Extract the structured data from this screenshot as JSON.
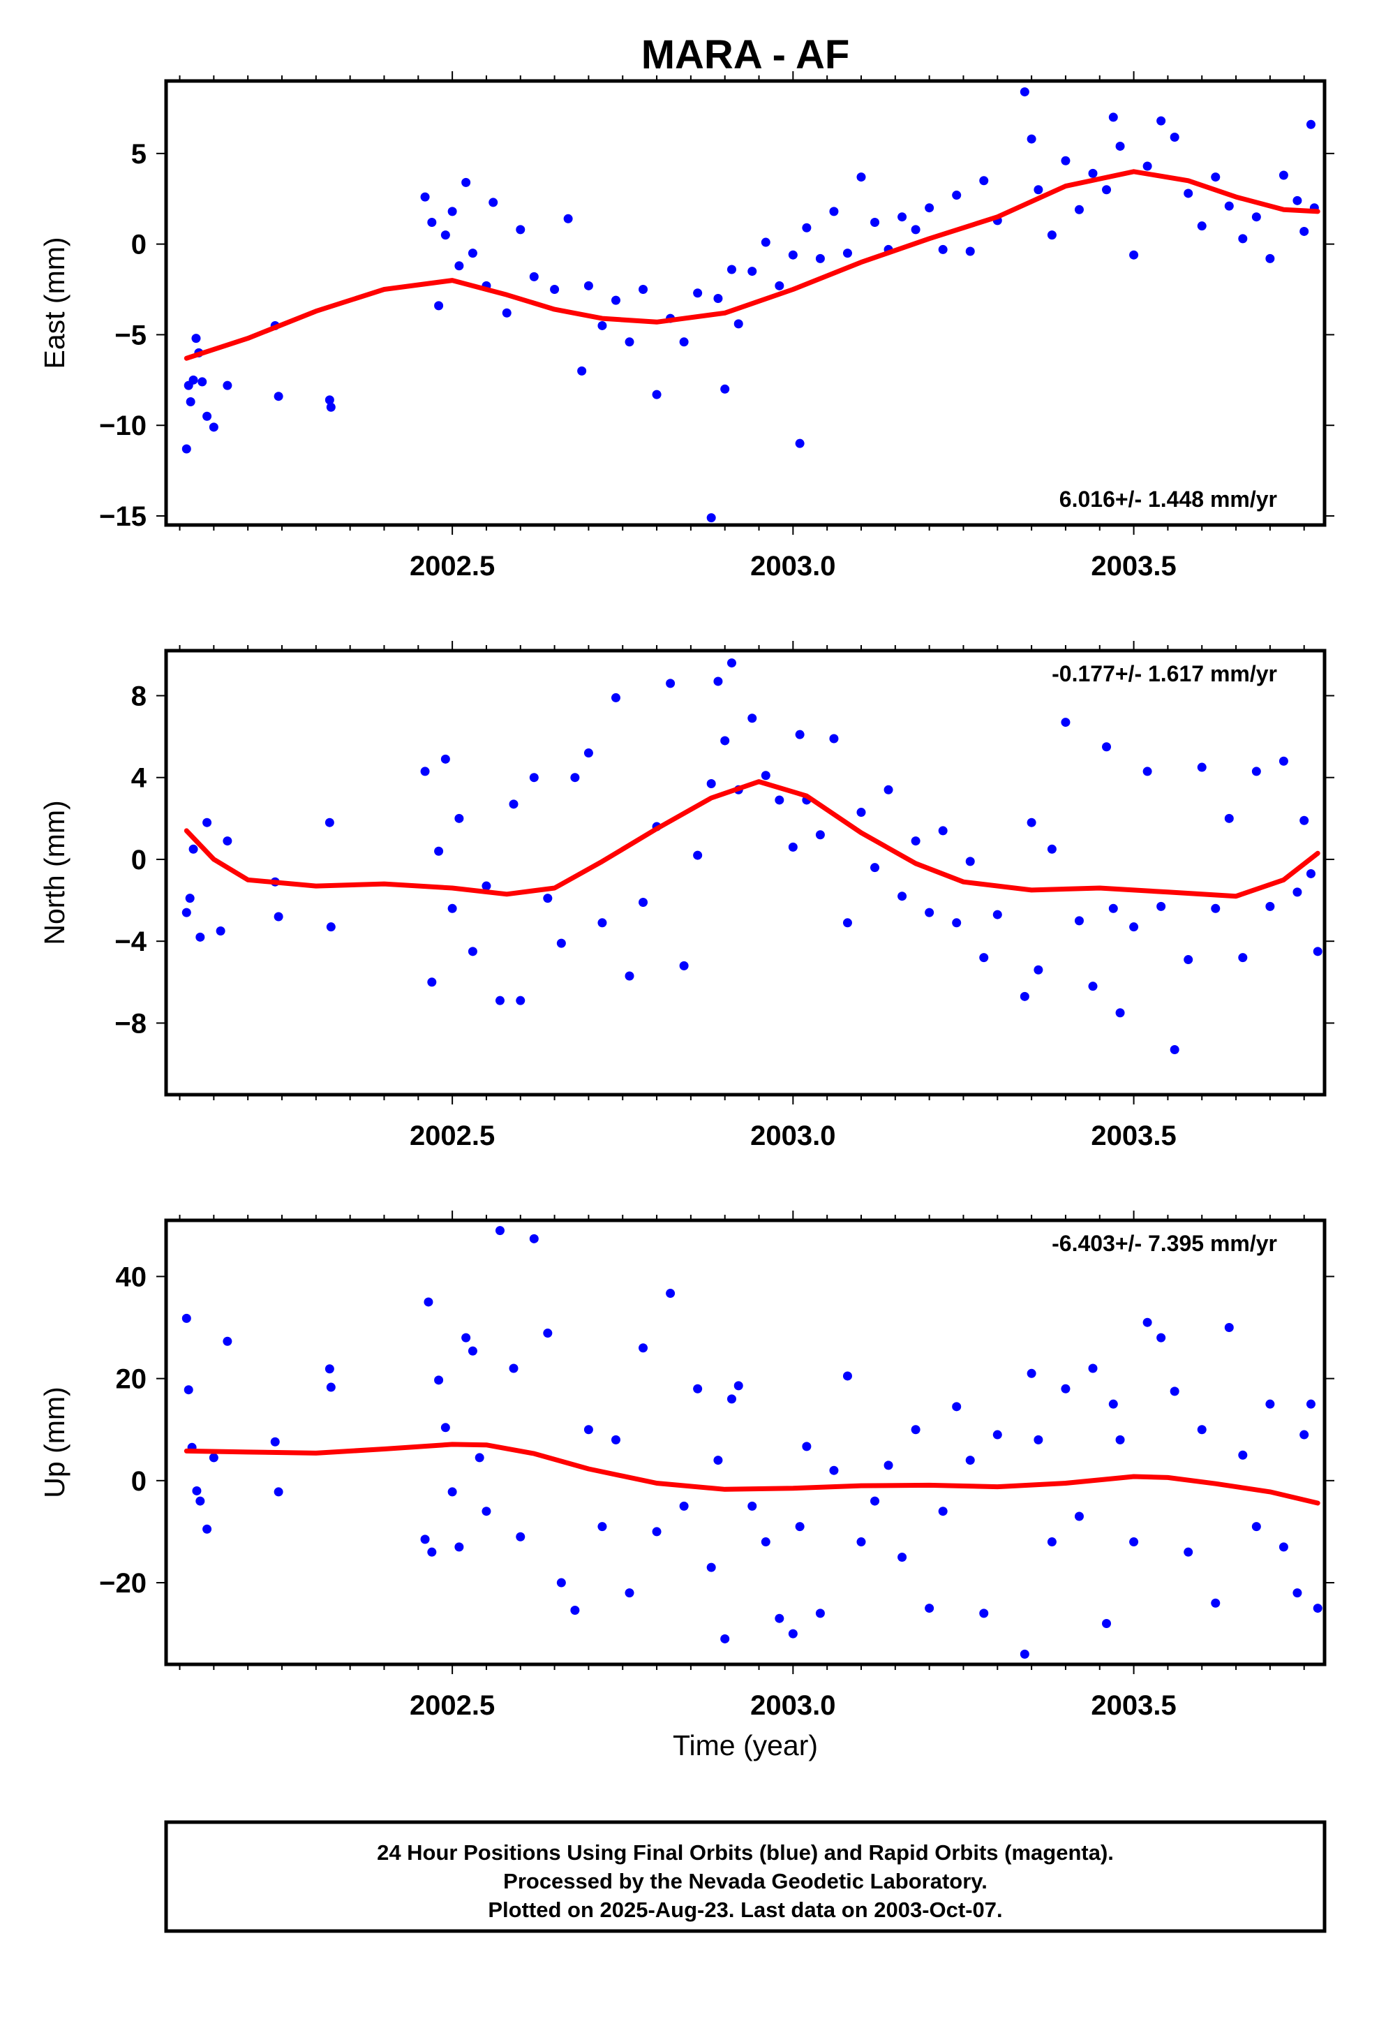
{
  "title": "MARA - AF",
  "colors": {
    "final_orbit_points": "#0000ff",
    "fit_line": "#ff0000",
    "frame": "#000000"
  },
  "chart_data": [
    {
      "type": "scatter",
      "panel": "east",
      "ylabel": "East (mm)",
      "xlabel": "",
      "rate_label": "6.016+/- 1.448 mm/yr",
      "rate_position": "bottom-right",
      "x_ticks": [
        {
          "v": 2002.5,
          "label": "2002.5"
        },
        {
          "v": 2003.0,
          "label": "2003.0"
        },
        {
          "v": 2003.5,
          "label": "2003.5"
        }
      ],
      "y_ticks": [
        {
          "v": 5,
          "label": "5"
        },
        {
          "v": 0,
          "label": "0"
        },
        {
          "v": -5,
          "label": "−5"
        },
        {
          "v": -10,
          "label": "−10"
        },
        {
          "v": -15,
          "label": "−15"
        }
      ],
      "xlim": [
        2002.08,
        2003.78
      ],
      "ylim": [
        -15.5,
        9.0
      ],
      "grid": false,
      "series": [
        {
          "name": "24 Hour Positions (Final Orbits)",
          "style": "points",
          "x": [
            2002.11,
            2002.113,
            2002.116,
            2002.12,
            2002.124,
            2002.128,
            2002.133,
            2002.14,
            2002.15,
            2002.17,
            2002.24,
            2002.245,
            2002.32,
            2002.322,
            2002.46,
            2002.47,
            2002.48,
            2002.49,
            2002.5,
            2002.51,
            2002.52,
            2002.53,
            2002.55,
            2002.56,
            2002.58,
            2002.6,
            2002.62,
            2002.65,
            2002.67,
            2002.69,
            2002.7,
            2002.72,
            2002.74,
            2002.76,
            2002.78,
            2002.8,
            2002.82,
            2002.84,
            2002.86,
            2002.88,
            2002.89,
            2002.9,
            2002.91,
            2002.92,
            2002.94,
            2002.96,
            2002.98,
            2003.0,
            2003.01,
            2003.02,
            2003.04,
            2003.06,
            2003.08,
            2003.1,
            2003.12,
            2003.14,
            2003.16,
            2003.18,
            2003.2,
            2003.22,
            2003.24,
            2003.26,
            2003.28,
            2003.3,
            2003.34,
            2003.35,
            2003.36,
            2003.38,
            2003.4,
            2003.42,
            2003.44,
            2003.46,
            2003.47,
            2003.48,
            2003.5,
            2003.52,
            2003.54,
            2003.56,
            2003.58,
            2003.6,
            2003.62,
            2003.64,
            2003.66,
            2003.68,
            2003.7,
            2003.72,
            2003.74,
            2003.75,
            2003.76,
            2003.765
          ],
          "y": [
            -11.3,
            -7.8,
            -8.7,
            -7.5,
            -5.2,
            -6.0,
            -7.6,
            -9.5,
            -10.1,
            -7.8,
            -4.5,
            -8.4,
            -8.6,
            -9.0,
            2.6,
            1.2,
            -3.4,
            0.5,
            1.8,
            -1.2,
            3.4,
            -0.5,
            -2.3,
            2.3,
            -3.8,
            0.8,
            -1.8,
            -2.5,
            1.4,
            -7.0,
            -2.3,
            -4.5,
            -3.1,
            -5.4,
            -2.5,
            -8.3,
            -4.1,
            -5.4,
            -2.7,
            -15.1,
            -3.0,
            -8.0,
            -1.4,
            -4.4,
            -1.5,
            0.1,
            -2.3,
            -0.6,
            -11.0,
            0.9,
            -0.8,
            1.8,
            -0.5,
            3.7,
            1.2,
            -0.3,
            1.5,
            0.8,
            2.0,
            -0.3,
            2.7,
            -0.4,
            3.5,
            1.3,
            8.4,
            5.8,
            3.0,
            0.5,
            4.6,
            1.9,
            3.9,
            3.0,
            7.0,
            5.4,
            -0.6,
            4.3,
            6.8,
            5.9,
            2.8,
            1.0,
            3.7,
            2.1,
            0.3,
            1.5,
            -0.8,
            3.8,
            2.4,
            0.7,
            6.6,
            2.0
          ]
        },
        {
          "name": "Fit",
          "style": "line",
          "x": [
            2002.11,
            2002.2,
            2002.3,
            2002.4,
            2002.5,
            2002.58,
            2002.65,
            2002.72,
            2002.8,
            2002.9,
            2003.0,
            2003.1,
            2003.2,
            2003.3,
            2003.4,
            2003.5,
            2003.58,
            2003.65,
            2003.72,
            2003.77
          ],
          "y": [
            -6.3,
            -5.2,
            -3.7,
            -2.5,
            -2.0,
            -2.8,
            -3.6,
            -4.1,
            -4.3,
            -3.8,
            -2.5,
            -1.0,
            0.3,
            1.5,
            3.2,
            4.0,
            3.5,
            2.6,
            1.9,
            1.8
          ]
        }
      ]
    },
    {
      "type": "scatter",
      "panel": "north",
      "ylabel": "North (mm)",
      "xlabel": "",
      "rate_label": "-0.177+/- 1.617 mm/yr",
      "rate_position": "top-right",
      "x_ticks": [
        {
          "v": 2002.5,
          "label": "2002.5"
        },
        {
          "v": 2003.0,
          "label": "2003.0"
        },
        {
          "v": 2003.5,
          "label": "2003.5"
        }
      ],
      "y_ticks": [
        {
          "v": 8,
          "label": "8"
        },
        {
          "v": 4,
          "label": "4"
        },
        {
          "v": 0,
          "label": "0"
        },
        {
          "v": -4,
          "label": "−4"
        },
        {
          "v": -8,
          "label": "−8"
        }
      ],
      "xlim": [
        2002.08,
        2003.78
      ],
      "ylim": [
        -11.5,
        10.2
      ],
      "grid": false,
      "series": [
        {
          "name": "24 Hour Positions (Final Orbits)",
          "style": "points",
          "x": [
            2002.11,
            2002.115,
            2002.12,
            2002.13,
            2002.14,
            2002.16,
            2002.17,
            2002.24,
            2002.245,
            2002.32,
            2002.322,
            2002.46,
            2002.47,
            2002.48,
            2002.49,
            2002.5,
            2002.51,
            2002.53,
            2002.55,
            2002.57,
            2002.59,
            2002.6,
            2002.62,
            2002.64,
            2002.66,
            2002.68,
            2002.7,
            2002.72,
            2002.74,
            2002.76,
            2002.78,
            2002.8,
            2002.82,
            2002.84,
            2002.86,
            2002.88,
            2002.89,
            2002.9,
            2002.91,
            2002.92,
            2002.94,
            2002.96,
            2002.98,
            2003.0,
            2003.01,
            2003.02,
            2003.04,
            2003.06,
            2003.08,
            2003.1,
            2003.12,
            2003.14,
            2003.16,
            2003.18,
            2003.2,
            2003.22,
            2003.24,
            2003.26,
            2003.28,
            2003.3,
            2003.34,
            2003.35,
            2003.36,
            2003.38,
            2003.4,
            2003.42,
            2003.44,
            2003.46,
            2003.47,
            2003.48,
            2003.5,
            2003.52,
            2003.54,
            2003.56,
            2003.58,
            2003.6,
            2003.62,
            2003.64,
            2003.66,
            2003.68,
            2003.7,
            2003.72,
            2003.74,
            2003.75,
            2003.76,
            2003.77
          ],
          "y": [
            -2.6,
            -1.9,
            0.5,
            -3.8,
            1.8,
            -3.5,
            0.9,
            -1.1,
            -2.8,
            1.8,
            -3.3,
            4.3,
            -6.0,
            0.4,
            4.9,
            -2.4,
            2.0,
            -4.5,
            -1.3,
            -6.9,
            2.7,
            -6.9,
            4.0,
            -1.9,
            -4.1,
            4.0,
            5.2,
            -3.1,
            7.9,
            -5.7,
            -2.1,
            1.6,
            8.6,
            -5.2,
            0.2,
            3.7,
            8.7,
            5.8,
            9.6,
            3.4,
            6.9,
            4.1,
            2.9,
            0.6,
            6.1,
            2.9,
            1.2,
            5.9,
            -3.1,
            2.3,
            -0.4,
            3.4,
            -1.8,
            0.9,
            -2.6,
            1.4,
            -3.1,
            -0.1,
            -4.8,
            -2.7,
            -6.7,
            1.8,
            -5.4,
            0.5,
            6.7,
            -3.0,
            -6.2,
            5.5,
            -2.4,
            -7.5,
            -3.3,
            4.3,
            -2.3,
            -9.3,
            -4.9,
            4.5,
            -2.4,
            2.0,
            -4.8,
            4.3,
            -2.3,
            4.8,
            -1.6,
            1.9,
            -0.7,
            -4.5
          ]
        },
        {
          "name": "Fit",
          "style": "line",
          "x": [
            2002.11,
            2002.15,
            2002.2,
            2002.3,
            2002.4,
            2002.5,
            2002.58,
            2002.65,
            2002.72,
            2002.8,
            2002.88,
            2002.95,
            2003.02,
            2003.1,
            2003.18,
            2003.25,
            2003.35,
            2003.45,
            2003.55,
            2003.65,
            2003.72,
            2003.77
          ],
          "y": [
            1.4,
            0.0,
            -1.0,
            -1.3,
            -1.2,
            -1.4,
            -1.7,
            -1.4,
            -0.1,
            1.5,
            3.0,
            3.8,
            3.1,
            1.3,
            -0.2,
            -1.1,
            -1.5,
            -1.4,
            -1.6,
            -1.8,
            -1.0,
            0.3
          ]
        }
      ]
    },
    {
      "type": "scatter",
      "panel": "up",
      "ylabel": "Up (mm)",
      "xlabel": "Time (year)",
      "rate_label": "-6.403+/- 7.395 mm/yr",
      "rate_position": "top-right",
      "x_ticks": [
        {
          "v": 2002.5,
          "label": "2002.5"
        },
        {
          "v": 2003.0,
          "label": "2003.0"
        },
        {
          "v": 2003.5,
          "label": "2003.5"
        }
      ],
      "y_ticks": [
        {
          "v": 40,
          "label": "40"
        },
        {
          "v": 20,
          "label": "20"
        },
        {
          "v": 0,
          "label": "0"
        },
        {
          "v": -20,
          "label": "−20"
        }
      ],
      "xlim": [
        2002.08,
        2003.78
      ],
      "ylim": [
        -36,
        51
      ],
      "grid": false,
      "series": [
        {
          "name": "24 Hour Positions (Final Orbits)",
          "style": "points",
          "x": [
            2002.11,
            2002.113,
            2002.118,
            2002.125,
            2002.13,
            2002.14,
            2002.15,
            2002.17,
            2002.24,
            2002.245,
            2002.32,
            2002.322,
            2002.46,
            2002.465,
            2002.47,
            2002.48,
            2002.49,
            2002.5,
            2002.51,
            2002.52,
            2002.53,
            2002.54,
            2002.55,
            2002.57,
            2002.59,
            2002.6,
            2002.62,
            2002.64,
            2002.66,
            2002.68,
            2002.7,
            2002.72,
            2002.74,
            2002.76,
            2002.78,
            2002.8,
            2002.82,
            2002.84,
            2002.86,
            2002.88,
            2002.89,
            2002.9,
            2002.91,
            2002.92,
            2002.94,
            2002.96,
            2002.98,
            2003.0,
            2003.01,
            2003.02,
            2003.04,
            2003.06,
            2003.08,
            2003.1,
            2003.12,
            2003.14,
            2003.16,
            2003.18,
            2003.2,
            2003.22,
            2003.24,
            2003.26,
            2003.28,
            2003.3,
            2003.34,
            2003.35,
            2003.36,
            2003.38,
            2003.4,
            2003.42,
            2003.44,
            2003.46,
            2003.47,
            2003.48,
            2003.5,
            2003.52,
            2003.54,
            2003.56,
            2003.58,
            2003.6,
            2003.62,
            2003.64,
            2003.66,
            2003.68,
            2003.7,
            2003.72,
            2003.74,
            2003.75,
            2003.76,
            2003.77
          ],
          "y": [
            31.8,
            17.8,
            6.5,
            -2.0,
            -4.0,
            -9.5,
            4.5,
            27.3,
            7.6,
            -2.2,
            21.9,
            18.3,
            -11.5,
            35.0,
            -14.0,
            19.7,
            10.4,
            -2.2,
            -13.0,
            28.0,
            25.4,
            4.5,
            -6.0,
            49.0,
            22.0,
            -11.0,
            47.4,
            28.9,
            -20.0,
            -25.4,
            10.0,
            -9.0,
            8.0,
            -22.0,
            26.0,
            -10.0,
            36.7,
            -5.0,
            18.0,
            -17.0,
            4.0,
            -31.0,
            16.0,
            18.6,
            -5.0,
            -12.0,
            -27.0,
            -30.0,
            -9.0,
            6.7,
            -26.0,
            2.0,
            20.5,
            -12.0,
            -4.0,
            3.0,
            -15.0,
            10.0,
            -25.0,
            -6.0,
            14.5,
            4.0,
            -26.0,
            9.0,
            -34.0,
            21.0,
            8.0,
            -12.0,
            18.0,
            -7.0,
            22.0,
            -28.0,
            15.0,
            8.0,
            -12.0,
            31.0,
            28.0,
            17.5,
            -14.0,
            10.0,
            -24.0,
            30.0,
            5.0,
            -9.0,
            15.0,
            -13.0,
            -22.0,
            9.0,
            15.0,
            -25.0
          ]
        },
        {
          "name": "Fit",
          "style": "line",
          "x": [
            2002.11,
            2002.2,
            2002.3,
            2002.4,
            2002.5,
            2002.55,
            2002.62,
            2002.7,
            2002.8,
            2002.9,
            2003.0,
            2003.1,
            2003.2,
            2003.3,
            2003.4,
            2003.5,
            2003.55,
            2003.62,
            2003.7,
            2003.77
          ],
          "y": [
            5.8,
            5.6,
            5.4,
            6.2,
            7.1,
            7.0,
            5.3,
            2.3,
            -0.5,
            -1.7,
            -1.5,
            -1.0,
            -0.9,
            -1.2,
            -0.5,
            0.8,
            0.6,
            -0.6,
            -2.2,
            -4.4
          ]
        }
      ]
    }
  ],
  "footer": {
    "line1": "24 Hour Positions Using Final Orbits (blue) and Rapid Orbits (magenta).",
    "line2": "Processed by the Nevada Geodetic Laboratory.",
    "line3": "Plotted on 2025-Aug-23. Last data on 2003-Oct-07."
  }
}
